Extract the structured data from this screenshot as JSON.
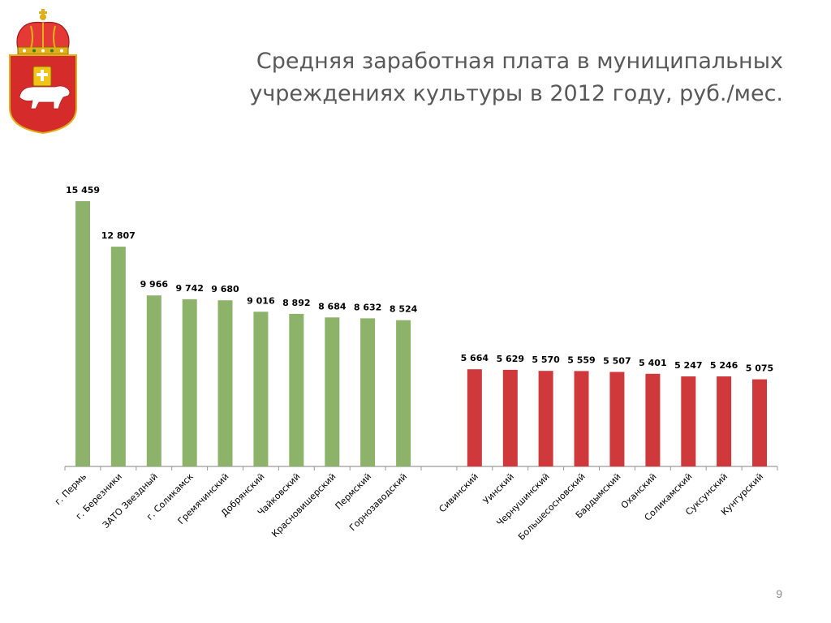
{
  "slide": {
    "title_line1": "Средняя заработная плата в муниципальных",
    "title_line2": "учреждениях культуры в 2012 году, руб./мес.",
    "page_number": "9"
  },
  "emblem": {
    "icon": "perm-krai-coat-of-arms-icon",
    "colors": {
      "field": "#d52b2b",
      "crown": "#e53935",
      "bear": "#ffffff",
      "book": "#f0c419"
    }
  },
  "colors": {
    "group_high": "#8db36a",
    "group_low": "#d0393c",
    "axis": "#9a9a9a",
    "label": "#000000"
  },
  "chart_data": {
    "type": "bar",
    "title": "",
    "xlabel": "",
    "ylabel": "",
    "ylim": [
      0,
      16000
    ],
    "grid": false,
    "legend": "none",
    "categories": [
      "г. Пермь",
      "г. Березники",
      "ЗАТО Звездный",
      "г. Соликамск",
      "Гремячинский",
      "Добрянский",
      "Чайковский",
      "Красновишерский",
      "Пермский",
      "Горнозаводский",
      "",
      "Сивинский",
      "Уинский",
      "Чернушинский",
      "Большесосновский",
      "Бардымский",
      "Оханский",
      "Соликамский",
      "Суксунский",
      "Кунгурский"
    ],
    "values": [
      15459,
      12807,
      9966,
      9742,
      9680,
      9016,
      8892,
      8684,
      8632,
      8524,
      null,
      5664,
      5629,
      5570,
      5559,
      5507,
      5401,
      5247,
      5246,
      5075
    ],
    "value_labels": [
      "15 459",
      "12 807",
      "9 966",
      "9 742",
      "9 680",
      "9 016",
      "8 892",
      "8 684",
      "8 632",
      "8 524",
      "",
      "5 664",
      "5 629",
      "5 570",
      "5 559",
      "5 507",
      "5 401",
      "5 247",
      "5 246",
      "5 075"
    ],
    "groups": [
      "high",
      "high",
      "high",
      "high",
      "high",
      "high",
      "high",
      "high",
      "high",
      "high",
      "gap",
      "low",
      "low",
      "low",
      "low",
      "low",
      "low",
      "low",
      "low",
      "low"
    ]
  }
}
